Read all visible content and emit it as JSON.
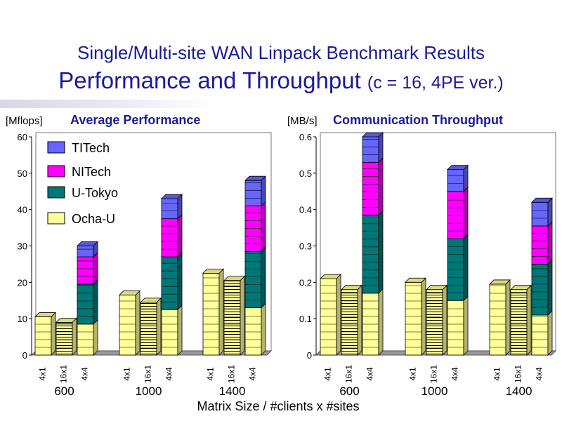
{
  "title_line1": "Single/Multi-site WAN Linpack Benchmark Results",
  "title_line2_main": "Performance and Throughput",
  "title_line2_sub": "(c = 16, 4PE ver.)",
  "xlabel": "Matrix Size  /  #clients x #sites",
  "colors": {
    "TITech": "#6666ff",
    "NITech": "#ff00ff",
    "U-Tokyo": "#007777",
    "Ocha-U": "#ffff99",
    "title": "#1a1a9a"
  },
  "chart_data": [
    {
      "type": "bar",
      "stacked": true,
      "title": "Average Performance",
      "ylabel": "[Mflops]",
      "ylim": [
        0,
        60
      ],
      "yticks": [
        "0",
        "10",
        "20",
        "30",
        "40",
        "50",
        "60"
      ],
      "groups": [
        "600",
        "1000",
        "1400"
      ],
      "categories": [
        "4x1",
        "16x1",
        "4x4"
      ],
      "legend": [
        "TITech",
        "NITech",
        "U-Tokyo",
        "Ocha-U"
      ],
      "legend_position": "top-left",
      "series": [
        {
          "name": "Ocha-U",
          "values": [
            [
              10.5,
              9,
              8.5
            ],
            [
              16.5,
              14.5,
              12.5
            ],
            [
              22.5,
              20.5,
              13
            ]
          ]
        },
        {
          "name": "U-Tokyo",
          "values": [
            [
              0,
              0,
              11
            ],
            [
              0,
              0,
              14.5
            ],
            [
              0,
              0,
              15.5
            ]
          ]
        },
        {
          "name": "NITech",
          "values": [
            [
              0,
              0,
              7.5
            ],
            [
              0,
              0,
              10.5
            ],
            [
              0,
              0,
              12.5
            ]
          ]
        },
        {
          "name": "TITech",
          "values": [
            [
              0,
              0,
              3
            ],
            [
              0,
              0,
              5.5
            ],
            [
              0,
              0,
              7
            ]
          ]
        }
      ]
    },
    {
      "type": "bar",
      "stacked": true,
      "title": "Communication Throughput",
      "ylabel": "[MB/s]",
      "ylim": [
        0,
        0.6
      ],
      "yticks": [
        "0",
        "0.1",
        "0.2",
        "0.3",
        "0.4",
        "0.5",
        "0.6"
      ],
      "groups": [
        "600",
        "1000",
        "1400"
      ],
      "categories": [
        "4x1",
        "16x1",
        "4x4"
      ],
      "series": [
        {
          "name": "Ocha-U",
          "values": [
            [
              0.21,
              0.18,
              0.17
            ],
            [
              0.2,
              0.18,
              0.15
            ],
            [
              0.195,
              0.18,
              0.11
            ]
          ]
        },
        {
          "name": "U-Tokyo",
          "values": [
            [
              0,
              0,
              0.215
            ],
            [
              0,
              0,
              0.17
            ],
            [
              0,
              0,
              0.14
            ]
          ]
        },
        {
          "name": "NITech",
          "values": [
            [
              0,
              0,
              0.145
            ],
            [
              0,
              0,
              0.13
            ],
            [
              0,
              0,
              0.105
            ]
          ]
        },
        {
          "name": "TITech",
          "values": [
            [
              0,
              0,
              0.07
            ],
            [
              0,
              0,
              0.06
            ],
            [
              0,
              0,
              0.065
            ]
          ]
        }
      ]
    }
  ]
}
